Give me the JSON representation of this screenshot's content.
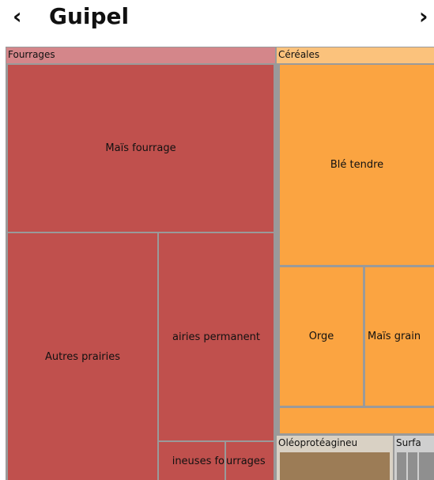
{
  "header": {
    "back": "‹",
    "title": "Guipel",
    "forward": "›"
  },
  "groups": [
    {
      "label": "Fourrages",
      "tiles": [
        "Maïs fourrage",
        "Autres prairies",
        "airies permanent",
        "ineuses fo",
        "urrages"
      ]
    },
    {
      "label": "Céréales",
      "tiles": [
        "Blé tendre",
        "Orge",
        "Maïs grain"
      ]
    },
    {
      "label": "Oléoprotéagineu"
    },
    {
      "label": "Surfa"
    }
  ]
}
